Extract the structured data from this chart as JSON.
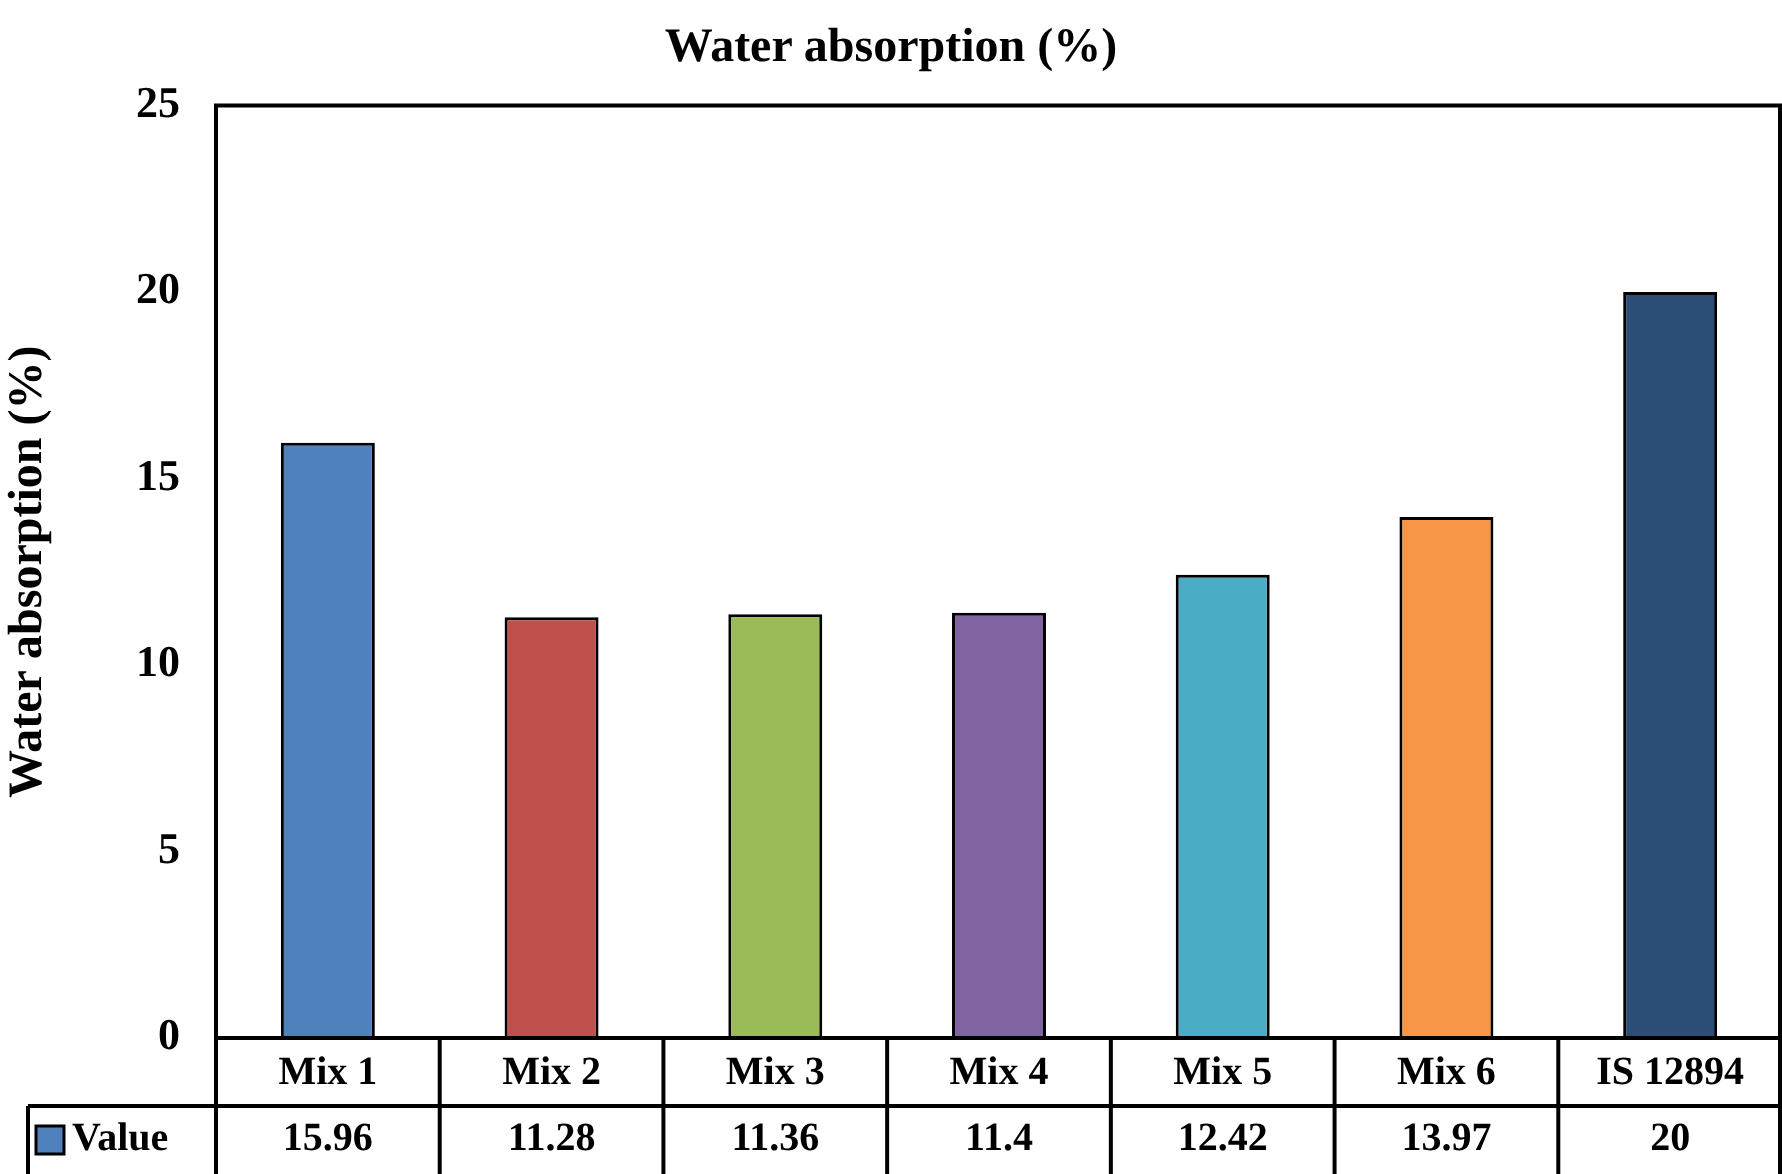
{
  "chart_data": {
    "type": "bar",
    "title": "Water absorption (%)",
    "ylabel": "Water absorption (%)",
    "categories": [
      "Mix 1",
      "Mix 2",
      "Mix 3",
      "Mix 4",
      "Mix 5",
      "Mix 6",
      "IS 12894"
    ],
    "series": [
      {
        "name": "Value",
        "color": "#4f81bd",
        "colors": [
          "#4f81bd",
          "#c0504d",
          "#9bbb59",
          "#8064a2",
          "#4bacc6",
          "#f79646",
          "#2c4d75"
        ],
        "values": [
          15.96,
          11.28,
          11.36,
          11.4,
          12.42,
          13.97,
          20
        ]
      }
    ],
    "ylim": [
      0,
      25
    ],
    "yticks": [
      0,
      5,
      10,
      15,
      20,
      25
    ],
    "grid": false,
    "data_labels": true,
    "legend": "bottom left"
  }
}
